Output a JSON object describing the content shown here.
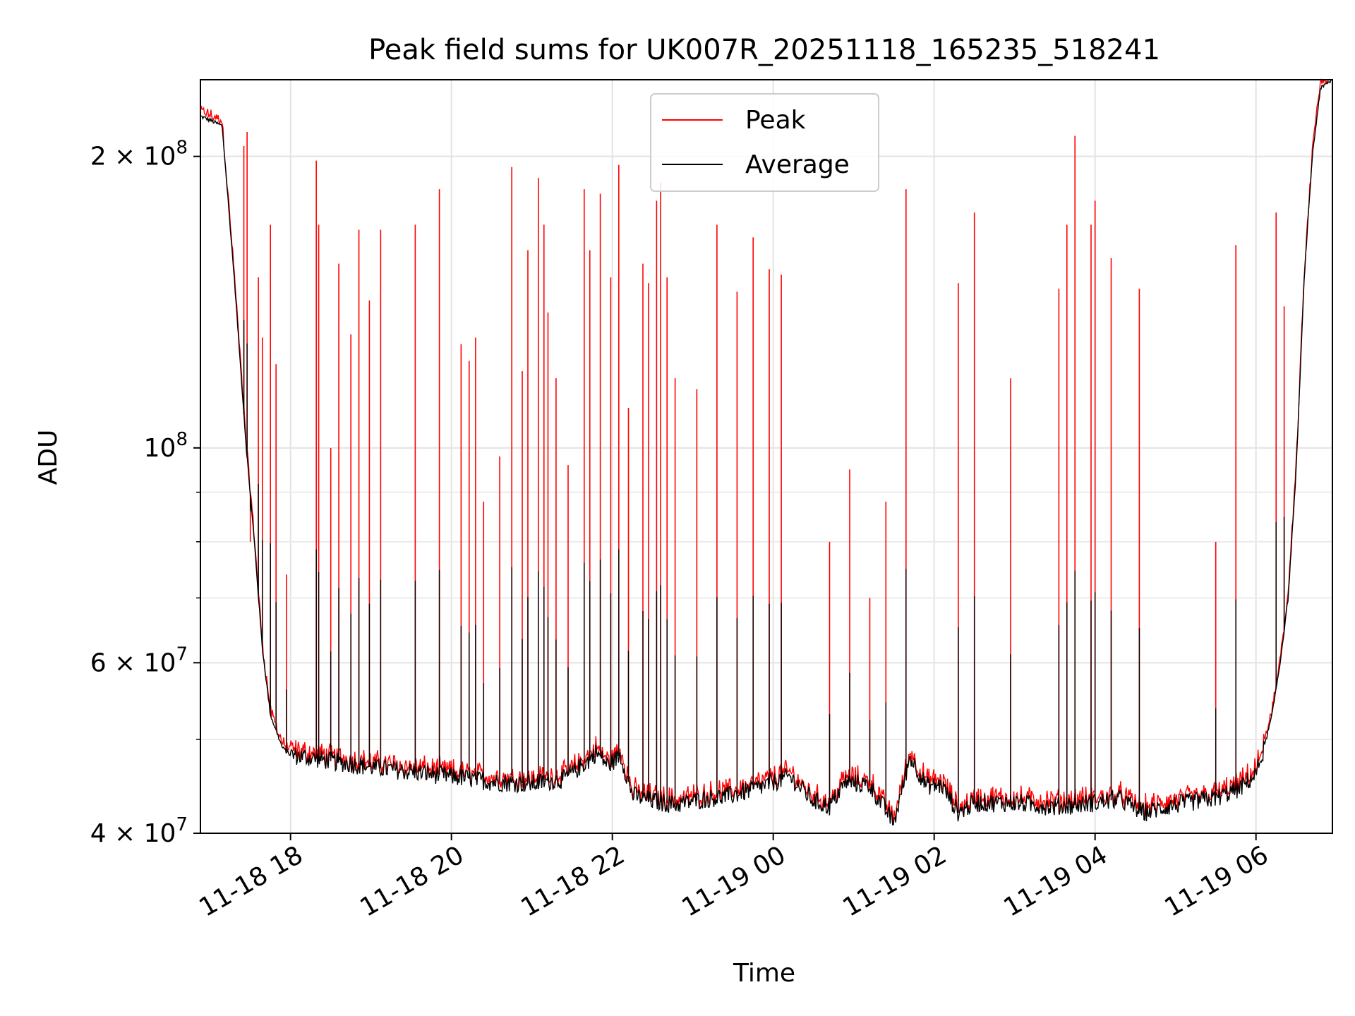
{
  "chart_data": {
    "type": "line",
    "title": "Peak field sums for UK007R_20251118_165235_518241",
    "xlabel": "Time",
    "ylabel": "ADU",
    "yscale": "log",
    "ylim": [
      40000000,
      240000000
    ],
    "xlim_hours": [
      16.88,
      30.95
    ],
    "grid": true,
    "legend_position": "upper-center",
    "x_tick_hours": [
      18,
      20,
      22,
      24,
      26,
      28,
      30
    ],
    "x_tick_labels": [
      "11-18 18",
      "11-18 20",
      "11-18 22",
      "11-19 00",
      "11-19 02",
      "11-19 04",
      "11-19 06"
    ],
    "y_major_ticks": [
      {
        "value": 200000000,
        "mantissa": "2",
        "times": "×",
        "base": "10",
        "exp": "8"
      },
      {
        "value": 100000000,
        "mantissa": "",
        "times": "",
        "base": "10",
        "exp": "8"
      },
      {
        "value": 60000000,
        "mantissa": "6",
        "times": "×",
        "base": "10",
        "exp": "7"
      },
      {
        "value": 40000000,
        "mantissa": "4",
        "times": "×",
        "base": "10",
        "exp": "7"
      }
    ],
    "y_minor_ticks": [
      50000000,
      70000000,
      80000000,
      90000000
    ],
    "series": [
      {
        "name": "Peak",
        "color": "#ff0000"
      },
      {
        "name": "Average",
        "color": "#000000"
      }
    ],
    "average_baseline": [
      [
        16.88,
        220000000
      ],
      [
        17.0,
        218000000
      ],
      [
        17.15,
        215000000
      ],
      [
        17.3,
        150000000
      ],
      [
        17.45,
        100000000
      ],
      [
        17.55,
        80000000
      ],
      [
        17.65,
        62000000
      ],
      [
        17.75,
        53000000
      ],
      [
        17.9,
        49000000
      ],
      [
        18.0,
        48200000
      ],
      [
        18.5,
        47500000
      ],
      [
        19.0,
        46800000
      ],
      [
        19.5,
        46300000
      ],
      [
        20.0,
        45800000
      ],
      [
        20.5,
        45200000
      ],
      [
        21.0,
        45000000
      ],
      [
        21.4,
        45500000
      ],
      [
        21.7,
        47500000
      ],
      [
        21.8,
        48500000
      ],
      [
        21.95,
        47000000
      ],
      [
        22.1,
        48200000
      ],
      [
        22.25,
        43800000
      ],
      [
        22.5,
        43200000
      ],
      [
        22.8,
        42800000
      ],
      [
        23.0,
        43200000
      ],
      [
        23.5,
        43800000
      ],
      [
        23.9,
        44800000
      ],
      [
        24.2,
        45800000
      ],
      [
        24.5,
        43200000
      ],
      [
        24.7,
        42600000
      ],
      [
        24.9,
        45200000
      ],
      [
        25.2,
        44800000
      ],
      [
        25.5,
        41000000
      ],
      [
        25.7,
        48000000
      ],
      [
        25.9,
        44800000
      ],
      [
        26.1,
        44800000
      ],
      [
        26.3,
        42000000
      ],
      [
        26.5,
        43000000
      ],
      [
        27.0,
        43000000
      ],
      [
        27.5,
        42600000
      ],
      [
        28.0,
        43000000
      ],
      [
        28.3,
        43400000
      ],
      [
        28.6,
        42000000
      ],
      [
        29.0,
        42800000
      ],
      [
        29.5,
        43500000
      ],
      [
        29.8,
        44500000
      ],
      [
        30.0,
        46000000
      ],
      [
        30.1,
        49000000
      ],
      [
        30.2,
        53000000
      ],
      [
        30.3,
        60000000
      ],
      [
        30.4,
        70000000
      ],
      [
        30.5,
        95000000
      ],
      [
        30.6,
        150000000
      ],
      [
        30.7,
        200000000
      ],
      [
        30.8,
        235000000
      ],
      [
        30.95,
        240000000
      ]
    ],
    "peak_spikes": [
      [
        17.42,
        205000000
      ],
      [
        17.46,
        212000000
      ],
      [
        17.5,
        80000000
      ],
      [
        17.6,
        150000000
      ],
      [
        17.65,
        130000000
      ],
      [
        17.75,
        170000000
      ],
      [
        17.82,
        122000000
      ],
      [
        17.95,
        74000000
      ],
      [
        18.32,
        198000000
      ],
      [
        18.35,
        170000000
      ],
      [
        18.5,
        100000000
      ],
      [
        18.6,
        155000000
      ],
      [
        18.75,
        131000000
      ],
      [
        18.85,
        168000000
      ],
      [
        18.98,
        142000000
      ],
      [
        19.12,
        168000000
      ],
      [
        19.55,
        170000000
      ],
      [
        19.85,
        185000000
      ],
      [
        20.12,
        128000000
      ],
      [
        20.22,
        123000000
      ],
      [
        20.3,
        130000000
      ],
      [
        20.4,
        88000000
      ],
      [
        20.6,
        98000000
      ],
      [
        20.75,
        195000000
      ],
      [
        20.88,
        120000000
      ],
      [
        20.95,
        160000000
      ],
      [
        21.08,
        190000000
      ],
      [
        21.15,
        170000000
      ],
      [
        21.2,
        138000000
      ],
      [
        21.3,
        118000000
      ],
      [
        21.45,
        96000000
      ],
      [
        21.65,
        185000000
      ],
      [
        21.72,
        160000000
      ],
      [
        21.85,
        183000000
      ],
      [
        21.98,
        150000000
      ],
      [
        22.08,
        196000000
      ],
      [
        22.2,
        110000000
      ],
      [
        22.38,
        155000000
      ],
      [
        22.45,
        148000000
      ],
      [
        22.55,
        180000000
      ],
      [
        22.6,
        188000000
      ],
      [
        22.68,
        150000000
      ],
      [
        22.78,
        118000000
      ],
      [
        23.05,
        115000000
      ],
      [
        23.3,
        170000000
      ],
      [
        23.55,
        145000000
      ],
      [
        23.75,
        165000000
      ],
      [
        23.95,
        153000000
      ],
      [
        24.1,
        151000000
      ],
      [
        24.7,
        80000000
      ],
      [
        24.95,
        95000000
      ],
      [
        25.2,
        70000000
      ],
      [
        25.4,
        88000000
      ],
      [
        25.65,
        185000000
      ],
      [
        26.3,
        148000000
      ],
      [
        26.5,
        175000000
      ],
      [
        26.95,
        118000000
      ],
      [
        27.55,
        146000000
      ],
      [
        27.65,
        170000000
      ],
      [
        27.75,
        210000000
      ],
      [
        27.95,
        170000000
      ],
      [
        28.0,
        180000000
      ],
      [
        28.2,
        157000000
      ],
      [
        28.55,
        146000000
      ],
      [
        29.5,
        80000000
      ],
      [
        29.75,
        162000000
      ],
      [
        30.25,
        175000000
      ],
      [
        30.35,
        140000000
      ],
      [
        30.5,
        95000000
      ]
    ]
  }
}
